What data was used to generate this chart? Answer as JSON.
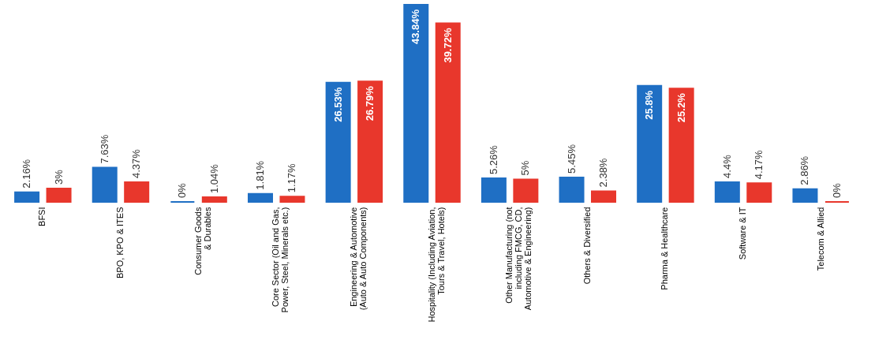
{
  "chart_data": {
    "type": "bar",
    "categories": [
      "BFSI",
      "BPO, KPO & ITES",
      "Consumer Goods\n& Durables",
      "Core Sector (Oil and Gas,\nPower, Steel, Minerals etc.)",
      "Engineering & Automotive\n(Auto & Auto Components)",
      "Hospitality (Including Aviation,\nTours & Travel, Hotels)",
      "Other Manufacturing (not\nincluding FMCG, CD,\nAutomotive & Engineering)",
      "Others & Diversified",
      "Pharma & Healthcare",
      "Software & IT",
      "Telecom & Allied"
    ],
    "series": [
      {
        "color": "#1f6fc4",
        "values": [
          2.16,
          7.63,
          0,
          1.81,
          26.53,
          43.84,
          5.26,
          5.45,
          25.8,
          4.4,
          2.86
        ],
        "value_labels": [
          "2.16%",
          "7.63%",
          "0%",
          "1.81%",
          "26.53%",
          "43.84%",
          "5.26%",
          "5.45%",
          "25.8%",
          "4.4%",
          "2.86%"
        ]
      },
      {
        "color": "#e8372c",
        "values": [
          3,
          4.37,
          1.04,
          1.17,
          26.79,
          39.72,
          5,
          2.38,
          25.2,
          4.17,
          0
        ],
        "value_labels": [
          "3%",
          "4.37%",
          "1.04%",
          "1.17%",
          "26.79%",
          "39.72%",
          "5%",
          "2.38%",
          "25.2%",
          "4.17%",
          "0%"
        ]
      }
    ]
  }
}
